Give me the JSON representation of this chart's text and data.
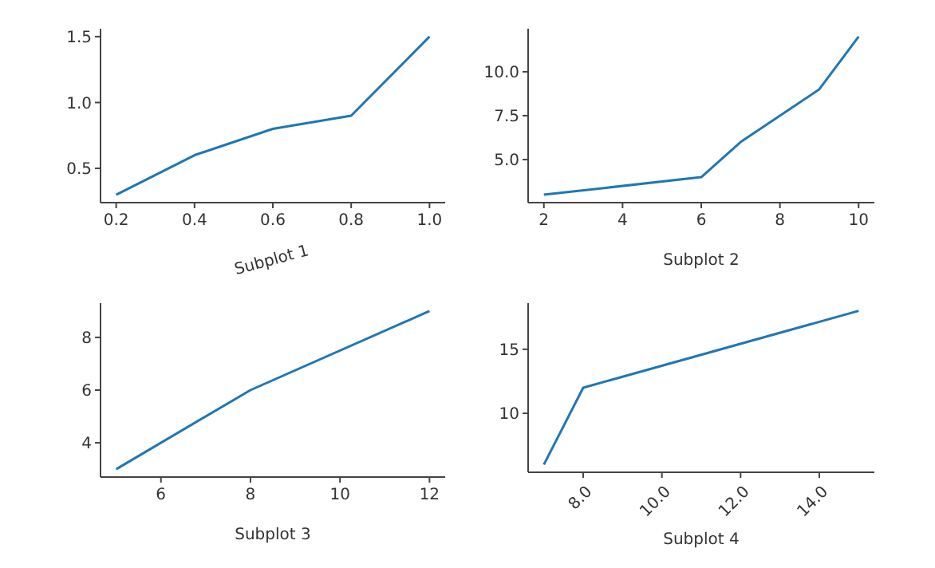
{
  "chart_data": [
    {
      "type": "line",
      "xlabel": "Subplot 1",
      "x": [
        0.2,
        0.4,
        0.6,
        0.8,
        1.0
      ],
      "series": [
        {
          "color": "#1f77b4",
          "values": [
            0.3,
            0.6,
            0.8,
            0.9,
            1.5
          ]
        }
      ],
      "xlim": [
        0.16,
        1.04
      ],
      "ylim": [
        0.24,
        1.56
      ],
      "xticks": [
        0.2,
        0.4,
        0.6,
        0.8,
        {
          "value": 1,
          "label": "1.0"
        }
      ],
      "yticks": [
        0.5,
        {
          "value": 1,
          "label": "1.0"
        },
        1.5
      ],
      "grid": false,
      "legend": false,
      "marker": "none",
      "line_style": "solid"
    },
    {
      "type": "line",
      "xlabel": "Subplot 2",
      "x": [
        2,
        6,
        7,
        9,
        10
      ],
      "series": [
        {
          "color": "#1f77b4",
          "values": [
            3,
            4,
            6,
            9,
            12
          ]
        }
      ],
      "xlim": [
        1.6,
        10.4
      ],
      "ylim": [
        2.55,
        12.45
      ],
      "xticks": [
        2,
        4,
        6,
        8,
        10
      ],
      "yticks": [
        {
          "value": 5,
          "label": "5.0"
        },
        7.5,
        {
          "value": 10,
          "label": "10.0"
        }
      ],
      "grid": false,
      "legend": false,
      "marker": "none",
      "line_style": "solid"
    },
    {
      "type": "line",
      "xlabel": "Subplot 3",
      "x": [
        5,
        8,
        12
      ],
      "series": [
        {
          "color": "#1f77b4",
          "values": [
            3,
            6,
            9
          ]
        }
      ],
      "xlim": [
        4.65,
        12.35
      ],
      "ylim": [
        2.7,
        9.3
      ],
      "xticks": [
        6,
        8,
        10,
        12
      ],
      "yticks": [
        4,
        6,
        8
      ],
      "grid": false,
      "legend": false,
      "marker": "none",
      "line_style": "solid"
    },
    {
      "type": "line",
      "xlabel": "Subplot 4",
      "x": [
        7,
        8,
        15
      ],
      "series": [
        {
          "color": "#1f77b4",
          "values": [
            6,
            12,
            18
          ]
        }
      ],
      "xlim": [
        6.6,
        15.4
      ],
      "ylim": [
        5.4,
        18.6
      ],
      "xticks": [
        {
          "value": 8,
          "label": "8.0"
        },
        {
          "value": 10,
          "label": "10.0"
        },
        {
          "value": 12,
          "label": "12.0"
        },
        {
          "value": 14,
          "label": "14.0"
        }
      ],
      "yticks": [
        10,
        15
      ],
      "grid": false,
      "legend": false,
      "marker": "none",
      "line_style": "solid"
    }
  ]
}
